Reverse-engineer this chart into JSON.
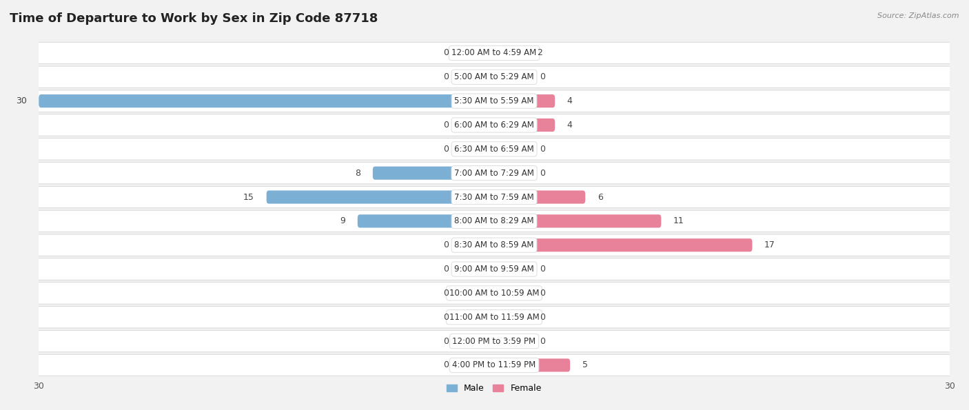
{
  "title": "Time of Departure to Work by Sex in Zip Code 87718",
  "source": "Source: ZipAtlas.com",
  "categories": [
    "12:00 AM to 4:59 AM",
    "5:00 AM to 5:29 AM",
    "5:30 AM to 5:59 AM",
    "6:00 AM to 6:29 AM",
    "6:30 AM to 6:59 AM",
    "7:00 AM to 7:29 AM",
    "7:30 AM to 7:59 AM",
    "8:00 AM to 8:29 AM",
    "8:30 AM to 8:59 AM",
    "9:00 AM to 9:59 AM",
    "10:00 AM to 10:59 AM",
    "11:00 AM to 11:59 AM",
    "12:00 PM to 3:59 PM",
    "4:00 PM to 11:59 PM"
  ],
  "male": [
    0,
    0,
    30,
    0,
    0,
    8,
    15,
    9,
    0,
    0,
    0,
    0,
    0,
    0
  ],
  "female": [
    2,
    0,
    4,
    4,
    0,
    0,
    6,
    11,
    17,
    0,
    0,
    0,
    0,
    5
  ],
  "male_color": "#7bafd4",
  "female_color": "#e8829a",
  "male_color_full": "#5a9fc7",
  "female_color_full": "#d4617a",
  "male_label": "Male",
  "female_label": "Female",
  "xlim": 30,
  "bg_color": "#f2f2f2",
  "row_bg_light": "#f7f7f7",
  "row_bg_dark": "#ebebeb",
  "bar_height": 0.55,
  "title_fontsize": 13,
  "source_fontsize": 8,
  "val_fontsize": 9,
  "cat_fontsize": 8.5,
  "legend_fontsize": 9
}
